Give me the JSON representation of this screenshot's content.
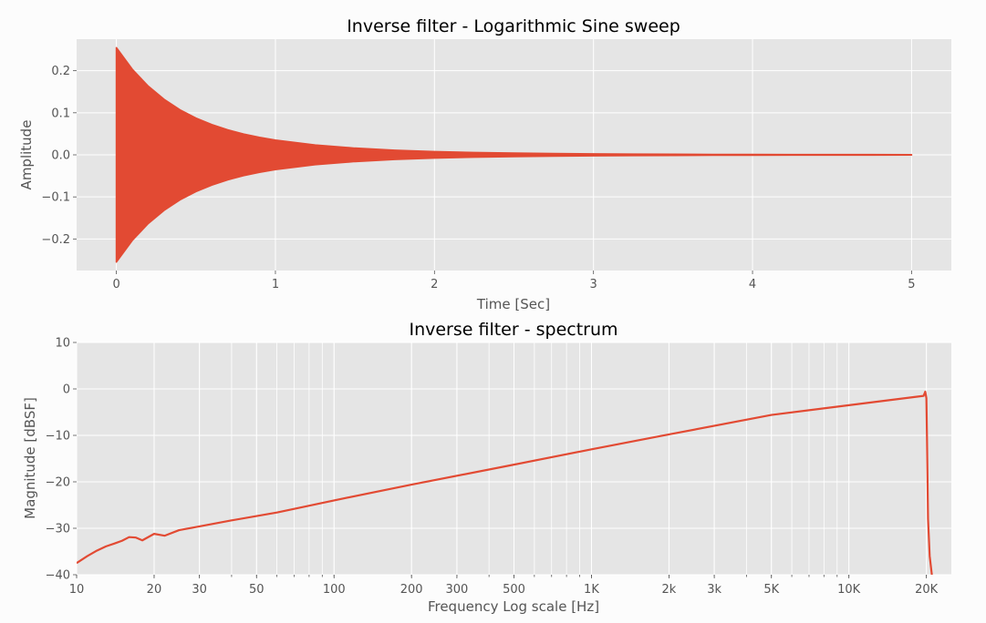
{
  "chart_data": [
    {
      "type": "area",
      "title": "Inverse filter - Logarithmic Sine sweep",
      "xlabel": "Time [Sec]",
      "ylabel": "Amplitude",
      "xlim": [
        -0.25,
        5.25
      ],
      "ylim": [
        -0.275,
        0.275
      ],
      "grid": true,
      "xticks": [
        0,
        1,
        2,
        3,
        4,
        5
      ],
      "xtick_labels": [
        "0",
        "1",
        "2",
        "3",
        "4",
        "5"
      ],
      "yticks": [
        0.2,
        0.1,
        0.0,
        -0.1,
        -0.2
      ],
      "ytick_labels": [
        "0.2",
        "0.1",
        "0.0",
        "−0.1",
        "−0.2"
      ],
      "series": [
        {
          "color": "#e24a33",
          "envelope": "symmetric",
          "x": [
            0,
            0.1,
            0.2,
            0.3,
            0.4,
            0.5,
            0.6,
            0.7,
            0.8,
            0.9,
            1.0,
            1.25,
            1.5,
            1.75,
            2.0,
            2.25,
            2.5,
            2.75,
            3.0,
            3.25,
            3.5,
            3.75,
            4.0,
            4.25,
            4.5,
            4.75,
            5.0
          ],
          "upper": [
            0.255,
            0.2035,
            0.1635,
            0.132,
            0.107,
            0.0875,
            0.072,
            0.0595,
            0.0495,
            0.0415,
            0.035,
            0.0235,
            0.016,
            0.011,
            0.0078,
            0.0056,
            0.0041,
            0.003,
            0.0023,
            0.0018,
            0.0014,
            0.0011,
            0.0009,
            0.0008,
            0.0007,
            0.0006,
            0.0005
          ]
        }
      ]
    },
    {
      "type": "line",
      "title": "Inverse filter - spectrum",
      "xlabel": "Frequency Log scale [Hz]",
      "ylabel": "Magnitude [dBSF]",
      "xscale": "log",
      "xlim": [
        10,
        25000
      ],
      "ylim": [
        -40,
        10
      ],
      "grid": true,
      "xticks": [
        10,
        20,
        30,
        50,
        100,
        200,
        300,
        500,
        1000,
        2000,
        3000,
        5000,
        10000,
        20000
      ],
      "xtick_labels": [
        "10",
        "20",
        "30",
        "50",
        "100",
        "200",
        "300",
        "500",
        "1K",
        "2k",
        "3k",
        "5K",
        "10K",
        "20K"
      ],
      "yticks": [
        10,
        0,
        -10,
        -20,
        -30,
        -40
      ],
      "ytick_labels": [
        "10",
        "0",
        "−10",
        "−20",
        "−30",
        "−40"
      ],
      "series": [
        {
          "color": "#e24a33",
          "x": [
            10,
            11,
            12,
            13,
            14,
            15,
            16,
            17,
            18,
            20,
            22,
            25,
            30,
            40,
            60,
            100,
            200,
            500,
            1000,
            2000,
            5000,
            10000,
            19500,
            19800,
            20000,
            20100,
            20300,
            20600,
            21000
          ],
          "y": [
            -37.5,
            -36.0,
            -34.8,
            -33.9,
            -33.3,
            -32.7,
            -31.9,
            -32.0,
            -32.6,
            -31.2,
            -31.6,
            -30.4,
            -29.6,
            -28.3,
            -26.6,
            -24.0,
            -20.6,
            -16.3,
            -13.0,
            -9.8,
            -5.6,
            -3.5,
            -1.5,
            -0.6,
            -2.0,
            -10.0,
            -28.0,
            -36.0,
            -40.0
          ]
        }
      ]
    }
  ]
}
